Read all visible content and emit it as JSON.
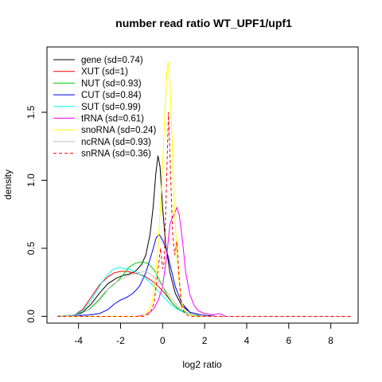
{
  "chart_data": {
    "type": "line",
    "title": "number read ratio WT_UPF1/upf1",
    "xlabel": "log2 ratio",
    "ylabel": "density",
    "xlim": [
      -5.5,
      9.3
    ],
    "ylim": [
      -0.05,
      1.98
    ],
    "xticks": [
      -4,
      -2,
      0,
      2,
      4,
      6,
      8
    ],
    "yticks": [
      0.0,
      0.5,
      1.0,
      1.5
    ],
    "x_tick_labels": [
      "-4",
      "-2",
      "0",
      "2",
      "4",
      "6",
      "8"
    ],
    "y_tick_labels": [
      "0.0",
      "0.5",
      "1.0",
      "1.5"
    ],
    "grid": false,
    "legend_position": "top-left",
    "series": [
      {
        "name": "gene (sd=0.74)",
        "color": "#000000",
        "dash": false,
        "points": [
          [
            -5,
            0
          ],
          [
            -4.2,
            0.01
          ],
          [
            -3.8,
            0.03
          ],
          [
            -3.4,
            0.09
          ],
          [
            -3.0,
            0.17
          ],
          [
            -2.6,
            0.24
          ],
          [
            -2.2,
            0.28
          ],
          [
            -1.9,
            0.3
          ],
          [
            -1.6,
            0.31
          ],
          [
            -1.3,
            0.33
          ],
          [
            -1.0,
            0.38
          ],
          [
            -0.8,
            0.45
          ],
          [
            -0.6,
            0.6
          ],
          [
            -0.45,
            0.8
          ],
          [
            -0.32,
            1.05
          ],
          [
            -0.22,
            1.18
          ],
          [
            -0.12,
            1.1
          ],
          [
            0.0,
            0.8
          ],
          [
            0.15,
            0.52
          ],
          [
            0.35,
            0.32
          ],
          [
            0.6,
            0.17
          ],
          [
            0.9,
            0.08
          ],
          [
            1.3,
            0.03
          ],
          [
            1.8,
            0.01
          ],
          [
            2.5,
            0
          ],
          [
            9,
            0
          ]
        ]
      },
      {
        "name": "XUT (sd=1)",
        "color": "#ff0000",
        "dash": false,
        "points": [
          [
            -5,
            0
          ],
          [
            -4.2,
            0.01
          ],
          [
            -3.8,
            0.05
          ],
          [
            -3.4,
            0.14
          ],
          [
            -3.0,
            0.23
          ],
          [
            -2.6,
            0.29
          ],
          [
            -2.3,
            0.32
          ],
          [
            -2.0,
            0.33
          ],
          [
            -1.7,
            0.33
          ],
          [
            -1.4,
            0.32
          ],
          [
            -1.1,
            0.31
          ],
          [
            -0.8,
            0.29
          ],
          [
            -0.5,
            0.26
          ],
          [
            -0.2,
            0.22
          ],
          [
            0.1,
            0.17
          ],
          [
            0.4,
            0.11
          ],
          [
            0.7,
            0.06
          ],
          [
            1.0,
            0.03
          ],
          [
            1.5,
            0.01
          ],
          [
            2.2,
            0
          ],
          [
            9,
            0
          ]
        ]
      },
      {
        "name": "NUT (sd=0.93)",
        "color": "#00cd00",
        "dash": false,
        "points": [
          [
            -5,
            0
          ],
          [
            -4.0,
            0.01
          ],
          [
            -3.5,
            0.05
          ],
          [
            -3.0,
            0.12
          ],
          [
            -2.6,
            0.2
          ],
          [
            -2.2,
            0.25
          ],
          [
            -1.9,
            0.3
          ],
          [
            -1.6,
            0.36
          ],
          [
            -1.3,
            0.39
          ],
          [
            -1.0,
            0.4
          ],
          [
            -0.7,
            0.39
          ],
          [
            -0.4,
            0.34
          ],
          [
            -0.1,
            0.25
          ],
          [
            0.2,
            0.16
          ],
          [
            0.5,
            0.09
          ],
          [
            0.8,
            0.05
          ],
          [
            1.2,
            0.02
          ],
          [
            1.8,
            0
          ],
          [
            9,
            0
          ]
        ]
      },
      {
        "name": "CUT (sd=0.84)",
        "color": "#0000ff",
        "dash": false,
        "points": [
          [
            -5,
            0
          ],
          [
            -3.5,
            0.01
          ],
          [
            -3.0,
            0.02
          ],
          [
            -2.6,
            0.05
          ],
          [
            -2.3,
            0.09
          ],
          [
            -2.0,
            0.12
          ],
          [
            -1.7,
            0.14
          ],
          [
            -1.4,
            0.17
          ],
          [
            -1.1,
            0.22
          ],
          [
            -0.8,
            0.32
          ],
          [
            -0.5,
            0.47
          ],
          [
            -0.3,
            0.58
          ],
          [
            -0.15,
            0.6
          ],
          [
            0.0,
            0.56
          ],
          [
            0.2,
            0.48
          ],
          [
            0.4,
            0.35
          ],
          [
            0.6,
            0.22
          ],
          [
            0.9,
            0.1
          ],
          [
            1.3,
            0.03
          ],
          [
            1.8,
            0.01
          ],
          [
            2.4,
            0
          ],
          [
            9,
            0
          ]
        ]
      },
      {
        "name": "SUT (sd=0.99)",
        "color": "#00ffff",
        "dash": false,
        "points": [
          [
            -5,
            0
          ],
          [
            -4.2,
            0.01
          ],
          [
            -3.8,
            0.04
          ],
          [
            -3.4,
            0.12
          ],
          [
            -3.0,
            0.22
          ],
          [
            -2.7,
            0.29
          ],
          [
            -2.4,
            0.34
          ],
          [
            -2.1,
            0.36
          ],
          [
            -1.8,
            0.35
          ],
          [
            -1.5,
            0.34
          ],
          [
            -1.2,
            0.32
          ],
          [
            -0.9,
            0.29
          ],
          [
            -0.6,
            0.25
          ],
          [
            -0.3,
            0.2
          ],
          [
            0.0,
            0.15
          ],
          [
            0.3,
            0.1
          ],
          [
            0.6,
            0.06
          ],
          [
            1.0,
            0.03
          ],
          [
            1.5,
            0.01
          ],
          [
            2.2,
            0
          ],
          [
            9,
            0
          ]
        ]
      },
      {
        "name": "tRNA (sd=0.61)",
        "color": "#ff00ff",
        "dash": false,
        "points": [
          [
            -5,
            0
          ],
          [
            -1.2,
            0
          ],
          [
            -0.9,
            0.01
          ],
          [
            -0.6,
            0.03
          ],
          [
            -0.4,
            0.06
          ],
          [
            -0.2,
            0.12
          ],
          [
            0.0,
            0.22
          ],
          [
            0.2,
            0.45
          ],
          [
            0.35,
            0.68
          ],
          [
            0.45,
            0.72
          ],
          [
            0.55,
            0.75
          ],
          [
            0.68,
            0.8
          ],
          [
            0.8,
            0.74
          ],
          [
            0.95,
            0.55
          ],
          [
            1.1,
            0.32
          ],
          [
            1.3,
            0.16
          ],
          [
            1.5,
            0.08
          ],
          [
            1.7,
            0.04
          ],
          [
            2.0,
            0.02
          ],
          [
            2.4,
            0.01
          ],
          [
            2.7,
            0.02
          ],
          [
            3.0,
            0
          ],
          [
            9,
            0
          ]
        ]
      },
      {
        "name": "snoRNA (sd=0.24)",
        "color": "#ffff00",
        "dash": false,
        "points": [
          [
            -5,
            0
          ],
          [
            -1.0,
            0
          ],
          [
            -0.7,
            0.03
          ],
          [
            -0.5,
            0.1
          ],
          [
            -0.35,
            0.25
          ],
          [
            -0.2,
            0.55
          ],
          [
            -0.05,
            0.95
          ],
          [
            0.1,
            1.45
          ],
          [
            0.2,
            1.8
          ],
          [
            0.27,
            1.87
          ],
          [
            0.35,
            1.7
          ],
          [
            0.45,
            1.3
          ],
          [
            0.55,
            0.85
          ],
          [
            0.7,
            0.4
          ],
          [
            0.85,
            0.15
          ],
          [
            1.0,
            0.05
          ],
          [
            1.3,
            0.01
          ],
          [
            1.6,
            0
          ],
          [
            9,
            0
          ]
        ]
      },
      {
        "name": "ncRNA (sd=0.93)",
        "color": "#bebebe",
        "dash": false,
        "points": [
          [
            -5,
            0
          ],
          [
            -4.0,
            0.01
          ],
          [
            -3.6,
            0.04
          ],
          [
            -3.2,
            0.1
          ],
          [
            -2.8,
            0.17
          ],
          [
            -2.4,
            0.23
          ],
          [
            -2.0,
            0.27
          ],
          [
            -1.6,
            0.3
          ],
          [
            -1.2,
            0.32
          ],
          [
            -0.8,
            0.33
          ],
          [
            -0.5,
            0.3
          ],
          [
            -0.2,
            0.26
          ],
          [
            0.1,
            0.2
          ],
          [
            0.4,
            0.14
          ],
          [
            0.7,
            0.08
          ],
          [
            1.0,
            0.04
          ],
          [
            1.5,
            0.01
          ],
          [
            2.2,
            0
          ],
          [
            9,
            0
          ]
        ]
      },
      {
        "name": "snRNA (sd=0.36)",
        "color": "#ff0000",
        "dash": true,
        "points": [
          [
            -5,
            0
          ],
          [
            -0.9,
            0
          ],
          [
            -0.6,
            0.02
          ],
          [
            -0.4,
            0.1
          ],
          [
            -0.25,
            0.3
          ],
          [
            -0.1,
            0.5
          ],
          [
            0.0,
            0.35
          ],
          [
            0.08,
            0.4
          ],
          [
            0.18,
            0.95
          ],
          [
            0.28,
            1.5
          ],
          [
            0.38,
            1.05
          ],
          [
            0.48,
            0.6
          ],
          [
            0.58,
            0.45
          ],
          [
            0.68,
            0.55
          ],
          [
            0.78,
            0.3
          ],
          [
            0.9,
            0.08
          ],
          [
            1.05,
            0.02
          ],
          [
            1.3,
            0
          ],
          [
            9,
            0
          ]
        ]
      }
    ]
  }
}
